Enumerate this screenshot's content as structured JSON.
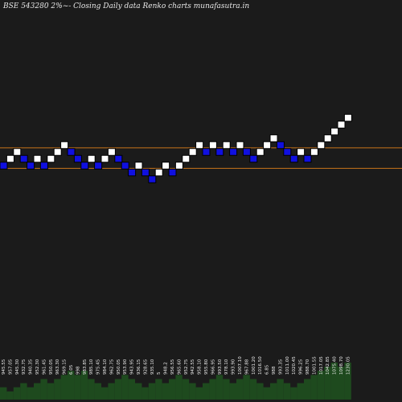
{
  "chart_data": {
    "type": "renko",
    "title": "BSE 543280  2%~-  Closing Daily data  Renko  charts munafasutra.in",
    "bricks": [
      {
        "value": 2,
        "color": "blue"
      },
      {
        "value": 3,
        "color": "white"
      },
      {
        "value": 4,
        "color": "white"
      },
      {
        "value": 3,
        "color": "blue"
      },
      {
        "value": 2,
        "color": "blue"
      },
      {
        "value": 3,
        "color": "white"
      },
      {
        "value": 2,
        "color": "blue"
      },
      {
        "value": 3,
        "color": "white"
      },
      {
        "value": 4,
        "color": "white"
      },
      {
        "value": 5,
        "color": "white"
      },
      {
        "value": 4,
        "color": "blue"
      },
      {
        "value": 3,
        "color": "blue"
      },
      {
        "value": 2,
        "color": "blue"
      },
      {
        "value": 3,
        "color": "white"
      },
      {
        "value": 2,
        "color": "blue"
      },
      {
        "value": 3,
        "color": "white"
      },
      {
        "value": 4,
        "color": "white"
      },
      {
        "value": 3,
        "color": "blue"
      },
      {
        "value": 2,
        "color": "blue"
      },
      {
        "value": 1,
        "color": "blue"
      },
      {
        "value": 2,
        "color": "white"
      },
      {
        "value": 1,
        "color": "blue"
      },
      {
        "value": 0,
        "color": "blue"
      },
      {
        "value": 1,
        "color": "white"
      },
      {
        "value": 2,
        "color": "white"
      },
      {
        "value": 1,
        "color": "blue"
      },
      {
        "value": 2,
        "color": "white"
      },
      {
        "value": 3,
        "color": "white"
      },
      {
        "value": 4,
        "color": "white"
      },
      {
        "value": 5,
        "color": "white"
      },
      {
        "value": 4,
        "color": "blue"
      },
      {
        "value": 5,
        "color": "white"
      },
      {
        "value": 4,
        "color": "blue"
      },
      {
        "value": 5,
        "color": "white"
      },
      {
        "value": 4,
        "color": "blue"
      },
      {
        "value": 5,
        "color": "white"
      },
      {
        "value": 4,
        "color": "blue"
      },
      {
        "value": 3,
        "color": "blue"
      },
      {
        "value": 4,
        "color": "white"
      },
      {
        "value": 5,
        "color": "white"
      },
      {
        "value": 6,
        "color": "white"
      },
      {
        "value": 5,
        "color": "blue"
      },
      {
        "value": 4,
        "color": "blue"
      },
      {
        "value": 3,
        "color": "blue"
      },
      {
        "value": 4,
        "color": "white"
      },
      {
        "value": 3,
        "color": "blue"
      },
      {
        "value": 4,
        "color": "white"
      },
      {
        "value": 5,
        "color": "white"
      },
      {
        "value": 6,
        "color": "white"
      },
      {
        "value": 7,
        "color": "white"
      },
      {
        "value": 8,
        "color": "white"
      },
      {
        "value": 9,
        "color": "white"
      }
    ],
    "lines": [
      {
        "value": 4.6,
        "color": "#c8741b"
      },
      {
        "value": 1.6,
        "color": "#c8741b"
      }
    ],
    "volume": {
      "values": [
        3,
        2,
        3,
        4,
        3,
        4,
        5,
        4,
        5,
        6,
        7,
        6,
        7,
        5,
        4,
        3,
        4,
        5,
        6,
        5,
        4,
        3,
        4,
        5,
        4,
        5,
        6,
        5,
        4,
        3,
        4,
        5,
        6,
        5,
        4,
        5,
        6,
        5,
        4,
        3,
        4,
        5,
        4,
        3,
        4,
        5,
        6,
        7,
        8,
        9,
        8,
        9
      ],
      "labels": [
        "945.55",
        "957.05",
        "945.30",
        "932.75",
        "940.35",
        "952.30",
        "961.45",
        "950.05",
        "963.30",
        "969.15",
        "6.05",
        "998",
        "983.85",
        "985.10",
        "975.45",
        "984.10",
        "962.75",
        "950.05",
        "953.90",
        "943.95",
        "936.15",
        "928.65",
        "935.10",
        "5",
        "948.2",
        "956.55",
        "965.60",
        "952.75",
        "942.55",
        "958.10",
        "955.80",
        "966.95",
        "993.50",
        "978.10",
        "993.90",
        "1007.10",
        "967.88",
        "1001.20",
        "1016.50",
        "6.85",
        "988",
        "993.35",
        "1011.00",
        "1020.45",
        "996.25",
        "988.70",
        "1001.55",
        "1017.05",
        "1042.85",
        "1075.40",
        "1098.70",
        "1230.05"
      ],
      "color": "#1e4a1e"
    }
  }
}
